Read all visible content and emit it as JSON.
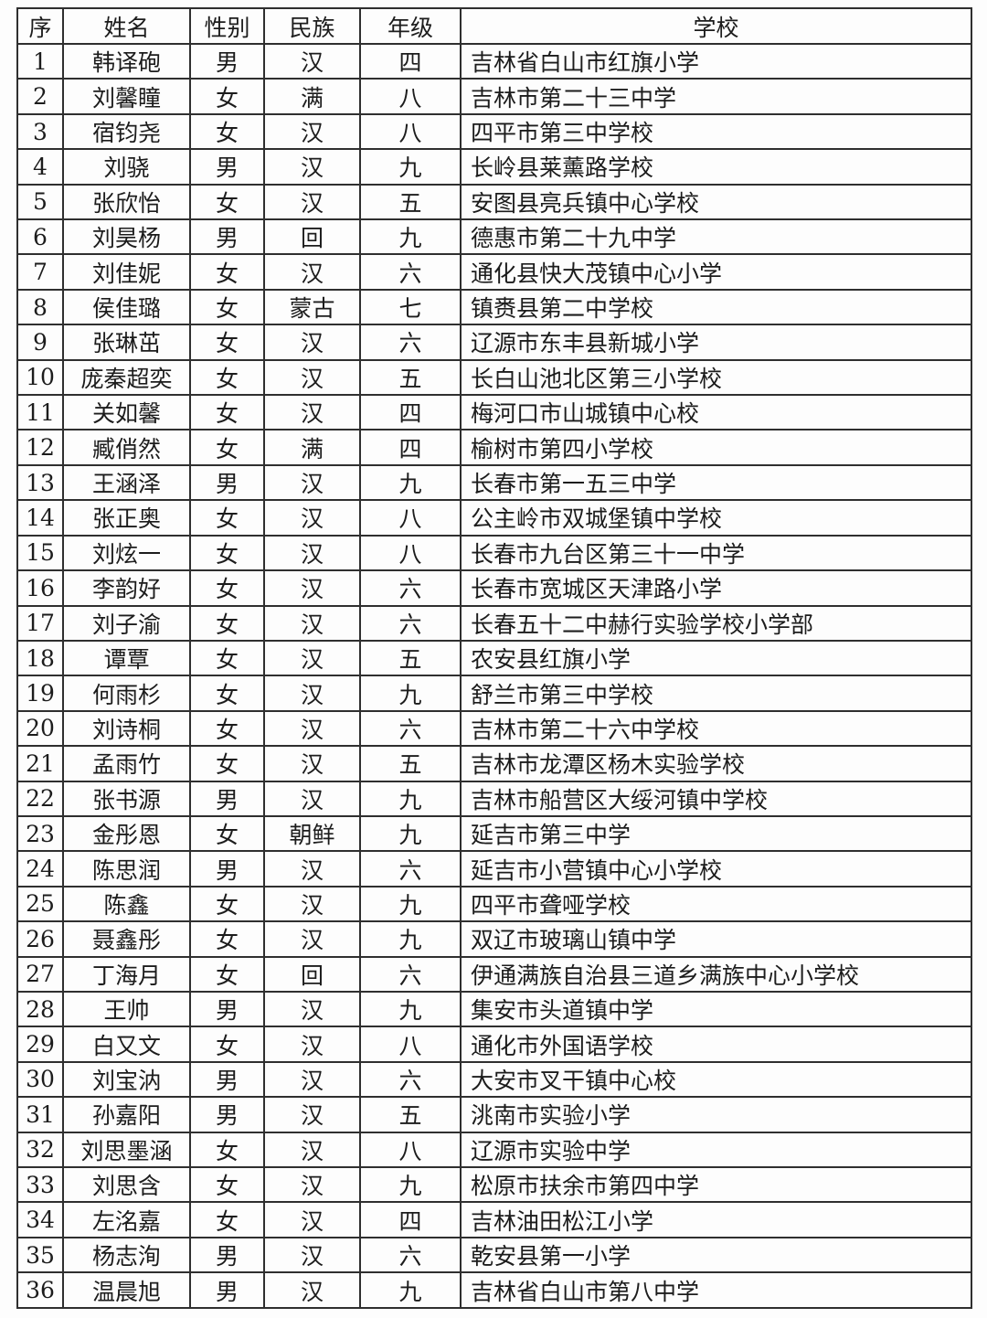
{
  "table": {
    "columns": [
      "序",
      "姓名",
      "性别",
      "民族",
      "年级",
      "学校"
    ],
    "cell_names": [
      "cell-no",
      "cell-name",
      "cell-gender",
      "cell-ethnicity",
      "cell-grade",
      "cell-school"
    ],
    "rows": [
      [
        "1",
        "韩译砲",
        "男",
        "汉",
        "四",
        "吉林省白山市红旗小学"
      ],
      [
        "2",
        "刘馨瞳",
        "女",
        "满",
        "八",
        "吉林市第二十三中学"
      ],
      [
        "3",
        "宿钧尧",
        "女",
        "汉",
        "八",
        "四平市第三中学校"
      ],
      [
        "4",
        "刘骁",
        "男",
        "汉",
        "九",
        "长岭县莱薰路学校"
      ],
      [
        "5",
        "张欣怡",
        "女",
        "汉",
        "五",
        "安图县亮兵镇中心学校"
      ],
      [
        "6",
        "刘昊杨",
        "男",
        "回",
        "九",
        "德惠市第二十九中学"
      ],
      [
        "7",
        "刘佳妮",
        "女",
        "汉",
        "六",
        "通化县快大茂镇中心小学"
      ],
      [
        "8",
        "侯佳璐",
        "女",
        "蒙古",
        "七",
        "镇赉县第二中学校"
      ],
      [
        "9",
        "张琳茁",
        "女",
        "汉",
        "六",
        "辽源市东丰县新城小学"
      ],
      [
        "10",
        "庞秦超奕",
        "女",
        "汉",
        "五",
        "长白山池北区第三小学校"
      ],
      [
        "11",
        "关如馨",
        "女",
        "汉",
        "四",
        "梅河口市山城镇中心校"
      ],
      [
        "12",
        "臧俏然",
        "女",
        "满",
        "四",
        "榆树市第四小学校"
      ],
      [
        "13",
        "王涵泽",
        "男",
        "汉",
        "九",
        "长春市第一五三中学"
      ],
      [
        "14",
        "张正奥",
        "女",
        "汉",
        "八",
        "公主岭市双城堡镇中学校"
      ],
      [
        "15",
        "刘炫一",
        "女",
        "汉",
        "八",
        "长春市九台区第三十一中学"
      ],
      [
        "16",
        "李韵好",
        "女",
        "汉",
        "六",
        "长春市宽城区天津路小学"
      ],
      [
        "17",
        "刘子渝",
        "女",
        "汉",
        "六",
        "长春五十二中赫行实验学校小学部"
      ],
      [
        "18",
        "谭覃",
        "女",
        "汉",
        "五",
        "农安县红旗小学"
      ],
      [
        "19",
        "何雨杉",
        "女",
        "汉",
        "九",
        "舒兰市第三中学校"
      ],
      [
        "20",
        "刘诗桐",
        "女",
        "汉",
        "六",
        "吉林市第二十六中学校"
      ],
      [
        "21",
        "孟雨竹",
        "女",
        "汉",
        "五",
        "吉林市龙潭区杨木实验学校"
      ],
      [
        "22",
        "张书源",
        "男",
        "汉",
        "九",
        "吉林市船营区大绥河镇中学校"
      ],
      [
        "23",
        "金彤恩",
        "女",
        "朝鲜",
        "九",
        "延吉市第三中学"
      ],
      [
        "24",
        "陈思润",
        "男",
        "汉",
        "六",
        "延吉市小营镇中心小学校"
      ],
      [
        "25",
        "陈鑫",
        "女",
        "汉",
        "九",
        "四平市聋哑学校"
      ],
      [
        "26",
        "聂鑫彤",
        "女",
        "汉",
        "九",
        "双辽市玻璃山镇中学"
      ],
      [
        "27",
        "丁海月",
        "女",
        "回",
        "六",
        "伊通满族自治县三道乡满族中心小学校"
      ],
      [
        "28",
        "王帅",
        "男",
        "汉",
        "九",
        "集安市头道镇中学"
      ],
      [
        "29",
        "白又文",
        "女",
        "汉",
        "八",
        "通化市外国语学校"
      ],
      [
        "30",
        "刘宝汭",
        "男",
        "汉",
        "六",
        "大安市叉干镇中心校"
      ],
      [
        "31",
        "孙嘉阳",
        "男",
        "汉",
        "五",
        "洮南市实验小学"
      ],
      [
        "32",
        "刘思墨涵",
        "女",
        "汉",
        "八",
        "辽源市实验中学"
      ],
      [
        "33",
        "刘思含",
        "女",
        "汉",
        "九",
        "松原市扶余市第四中学"
      ],
      [
        "34",
        "左洺嘉",
        "女",
        "汉",
        "四",
        "吉林油田松江小学"
      ],
      [
        "35",
        "杨志洵",
        "男",
        "汉",
        "六",
        "乾安县第一小学"
      ],
      [
        "36",
        "温晨旭",
        "男",
        "汉",
        "九",
        "吉林省白山市第八中学"
      ]
    ]
  }
}
